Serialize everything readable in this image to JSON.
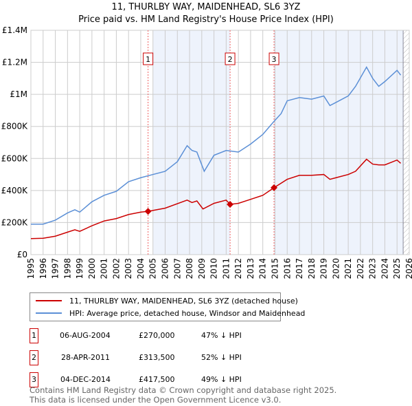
{
  "title": "11, THURLBY WAY, MAIDENHEAD, SL6 3YZ",
  "subtitle": "Price paid vs. HM Land Registry's House Price Index (HPI)",
  "chart_data": {
    "type": "line",
    "xlim": [
      1995,
      2026
    ],
    "ylim": [
      0,
      1400000
    ],
    "yticks": [
      {
        "v": 0,
        "label": "£0"
      },
      {
        "v": 200000,
        "label": "£200K"
      },
      {
        "v": 400000,
        "label": "£400K"
      },
      {
        "v": 600000,
        "label": "£600K"
      },
      {
        "v": 800000,
        "label": "£800K"
      },
      {
        "v": 1000000,
        "label": "£1M"
      },
      {
        "v": 1200000,
        "label": "£1.2M"
      },
      {
        "v": 1400000,
        "label": "£1.4M"
      }
    ],
    "xticks": [
      "1995",
      "1996",
      "1997",
      "1998",
      "1999",
      "2000",
      "2001",
      "2002",
      "2003",
      "2004",
      "2005",
      "2006",
      "2007",
      "2008",
      "2009",
      "2010",
      "2011",
      "2012",
      "2013",
      "2014",
      "2015",
      "2016",
      "2017",
      "2018",
      "2019",
      "2020",
      "2021",
      "2022",
      "2023",
      "2024",
      "2025",
      "2026"
    ],
    "series": [
      {
        "name": "11, THURLBY WAY, MAIDENHEAD, SL6 3YZ (detached house)",
        "color": "#cc0000",
        "x": [
          1995,
          1996,
          1997,
          1998,
          1998.6,
          1999,
          2000,
          2001,
          2002,
          2003,
          2004,
          2004.6,
          2006,
          2007.8,
          2008.2,
          2008.6,
          2009.1,
          2010,
          2011,
          2011.32,
          2012,
          2013,
          2014,
          2014.92,
          2016,
          2017,
          2018,
          2019,
          2019.5,
          2020,
          2021,
          2021.6,
          2022.5,
          2023,
          2023.5,
          2024,
          2025,
          2025.3
        ],
        "y": [
          100000,
          102000,
          115000,
          140000,
          155000,
          145000,
          180000,
          210000,
          225000,
          250000,
          265000,
          270000,
          290000,
          340000,
          325000,
          335000,
          285000,
          320000,
          340000,
          313500,
          320000,
          345000,
          370000,
          417500,
          470000,
          495000,
          495000,
          500000,
          470000,
          480000,
          500000,
          520000,
          595000,
          565000,
          560000,
          560000,
          590000,
          570000
        ]
      },
      {
        "name": "HPI: Average price, detached house, Windsor and Maidenhead",
        "color": "#5b8fd6",
        "x": [
          1995,
          1996,
          1997,
          1998,
          1998.6,
          1999,
          2000,
          2001,
          2002,
          2003,
          2004,
          2005,
          2006,
          2007,
          2007.8,
          2008.2,
          2008.6,
          2009.2,
          2010,
          2011,
          2012,
          2013,
          2014,
          2014.9,
          2015.5,
          2016,
          2017,
          2018,
          2019,
          2019.5,
          2020,
          2021,
          2021.6,
          2022.5,
          2023,
          2023.5,
          2024,
          2025,
          2025.3
        ],
        "y": [
          190000,
          190000,
          215000,
          260000,
          280000,
          265000,
          330000,
          370000,
          395000,
          455000,
          480000,
          500000,
          520000,
          580000,
          680000,
          650000,
          640000,
          520000,
          620000,
          650000,
          640000,
          690000,
          750000,
          830000,
          880000,
          960000,
          980000,
          970000,
          990000,
          930000,
          950000,
          990000,
          1050000,
          1170000,
          1100000,
          1050000,
          1080000,
          1150000,
          1120000
        ]
      }
    ],
    "sales": [
      {
        "n": "1",
        "x": 2004.6,
        "y": 270000
      },
      {
        "n": "2",
        "x": 2011.32,
        "y": 313500
      },
      {
        "n": "3",
        "x": 2014.92,
        "y": 417500
      }
    ],
    "shaded": [
      [
        2005,
        2011.32
      ],
      [
        2014.92,
        2025.5
      ]
    ],
    "hatched_from": 2025.5
  },
  "legend": {
    "red": "11, THURLBY WAY, MAIDENHEAD, SL6 3YZ (detached house)",
    "blue": "HPI: Average price, detached house, Windsor and Maidenhead"
  },
  "table": [
    {
      "n": "1",
      "date": "06-AUG-2004",
      "price": "£270,000",
      "hpi": "47% ↓ HPI"
    },
    {
      "n": "2",
      "date": "28-APR-2011",
      "price": "£313,500",
      "hpi": "52% ↓ HPI"
    },
    {
      "n": "3",
      "date": "04-DEC-2014",
      "price": "£417,500",
      "hpi": "49% ↓ HPI"
    }
  ],
  "footer": [
    "Contains HM Land Registry data © Crown copyright and database right 2025.",
    "This data is licensed under the Open Government Licence v3.0."
  ]
}
